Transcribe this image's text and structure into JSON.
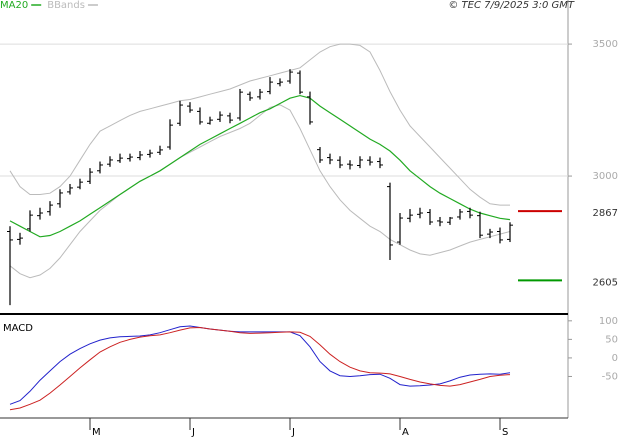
{
  "chart_data": [
    {
      "type": "ohlc",
      "attribution": "© TEC 7/9/2025 3:0 GMT",
      "categories": [
        null,
        null,
        null,
        null,
        null,
        null,
        null,
        null,
        "M",
        null,
        null,
        null,
        null,
        null,
        null,
        null,
        null,
        null,
        "J",
        null,
        null,
        null,
        null,
        null,
        null,
        null,
        null,
        null,
        "J",
        null,
        null,
        null,
        null,
        null,
        null,
        null,
        null,
        null,
        null,
        "A",
        null,
        null,
        null,
        null,
        null,
        null,
        null,
        null,
        null,
        "S",
        null
      ],
      "open": [
        2790,
        2760,
        2800,
        2850,
        2865,
        2895,
        2940,
        2958,
        2980,
        3020,
        3045,
        3058,
        3066,
        3070,
        3082,
        3090,
        3110,
        3200,
        3265,
        3245,
        3200,
        3215,
        3228,
        3220,
        3310,
        3300,
        3320,
        3350,
        3360,
        3390,
        3300,
        3100,
        3070,
        3060,
        3045,
        3040,
        3060,
        3055,
        2960,
        2750,
        2840,
        2855,
        2862,
        2830,
        2825,
        2845,
        2866,
        2850,
        2780,
        2790,
        2760
      ],
      "high": [
        2810,
        2785,
        2870,
        2880,
        2905,
        2950,
        2970,
        2990,
        3030,
        3055,
        3075,
        3085,
        3085,
        3095,
        3100,
        3115,
        3215,
        3285,
        3280,
        3260,
        3225,
        3245,
        3240,
        3330,
        3320,
        3330,
        3375,
        3370,
        3405,
        3400,
        3320,
        3110,
        3085,
        3075,
        3060,
        3075,
        3075,
        3070,
        2975,
        2860,
        2875,
        2880,
        2875,
        2845,
        2845,
        2875,
        2880,
        2865,
        2800,
        2805,
        2825
      ],
      "low": [
        2511,
        2740,
        2790,
        2835,
        2850,
        2880,
        2930,
        2950,
        2970,
        3010,
        3035,
        3050,
        3055,
        3060,
        3070,
        3080,
        3100,
        3190,
        3240,
        3195,
        3195,
        3205,
        3200,
        3210,
        3285,
        3290,
        3310,
        3340,
        3350,
        3310,
        3195,
        3050,
        3045,
        3030,
        3025,
        3030,
        3040,
        3030,
        2682,
        2740,
        2825,
        2840,
        2815,
        2810,
        2815,
        2835,
        2840,
        2765,
        2765,
        2745,
        2750
      ],
      "close": [
        2758,
        2765,
        2852,
        2860,
        2890,
        2936,
        2955,
        2977,
        3015,
        3042,
        3061,
        3068,
        3072,
        3080,
        3087,
        3099,
        3193,
        3269,
        3250,
        3205,
        3212,
        3231,
        3212,
        3318,
        3296,
        3318,
        3356,
        3356,
        3394,
        3318,
        3205,
        3061,
        3061,
        3042,
        3042,
        3061,
        3053,
        3042,
        2739,
        2841,
        2852,
        2860,
        2826,
        2826,
        2841,
        2864,
        2852,
        2776,
        2788,
        2758,
        2814
      ],
      "bar_color": "#000000",
      "series": [
        {
          "name": "MA20",
          "color": "#22aa22",
          "values": [
            2830,
            2810,
            2790,
            2770,
            2775,
            2790,
            2810,
            2830,
            2855,
            2880,
            2905,
            2930,
            2955,
            2980,
            3000,
            3020,
            3045,
            3070,
            3095,
            3120,
            3140,
            3160,
            3180,
            3200,
            3220,
            3240,
            3255,
            3275,
            3295,
            3305,
            3295,
            3265,
            3240,
            3215,
            3190,
            3165,
            3140,
            3120,
            3095,
            3060,
            3020,
            2990,
            2960,
            2935,
            2915,
            2895,
            2875,
            2860,
            2850,
            2840,
            2835
          ]
        },
        {
          "name": "BBands",
          "color": "#bbbbbb",
          "upper": [
            3020,
            2960,
            2930,
            2930,
            2935,
            2960,
            3000,
            3060,
            3120,
            3170,
            3190,
            3210,
            3230,
            3245,
            3255,
            3265,
            3275,
            3285,
            3290,
            3300,
            3310,
            3320,
            3330,
            3345,
            3360,
            3370,
            3380,
            3390,
            3400,
            3410,
            3440,
            3470,
            3490,
            3500,
            3500,
            3495,
            3470,
            3400,
            3320,
            3250,
            3190,
            3150,
            3110,
            3070,
            3030,
            2990,
            2950,
            2920,
            2895,
            2890,
            2890
          ],
          "lower": [
            2660,
            2630,
            2615,
            2625,
            2650,
            2690,
            2740,
            2790,
            2830,
            2870,
            2900,
            2930,
            2955,
            2980,
            3000,
            3020,
            3045,
            3070,
            3090,
            3110,
            3130,
            3150,
            3165,
            3180,
            3200,
            3230,
            3260,
            3270,
            3250,
            3180,
            3100,
            3020,
            2960,
            2910,
            2870,
            2840,
            2810,
            2790,
            2760,
            2740,
            2720,
            2705,
            2700,
            2710,
            2720,
            2735,
            2750,
            2760,
            2770,
            2780,
            2790
          ]
        }
      ],
      "levels": [
        {
          "value": 2867,
          "color": "#cc0000"
        },
        {
          "value": 2605,
          "color": "#009900"
        }
      ],
      "ylim": [
        2485,
        3667
      ],
      "yticks": [
        3000,
        3500
      ],
      "grid": true
    },
    {
      "type": "macd",
      "title": "MACD",
      "series": [
        {
          "color": "#2222cc",
          "values": [
            -125,
            -115,
            -90,
            -60,
            -35,
            -10,
            10,
            25,
            38,
            48,
            54,
            57,
            58,
            59,
            62,
            68,
            76,
            84,
            86,
            82,
            78,
            75,
            72,
            70,
            70,
            70,
            70,
            70,
            70,
            60,
            30,
            -10,
            -35,
            -48,
            -50,
            -48,
            -45,
            -44,
            -55,
            -72,
            -76,
            -75,
            -73,
            -70,
            -62,
            -52,
            -46,
            -44,
            -43,
            -44,
            -40
          ]
        },
        {
          "color": "#cc2222",
          "values": [
            -140,
            -135,
            -125,
            -114,
            -95,
            -73,
            -50,
            -27,
            -5,
            16,
            30,
            42,
            50,
            56,
            60,
            62,
            68,
            75,
            81,
            82,
            78,
            75,
            72,
            68,
            66,
            67,
            68,
            69,
            70,
            69,
            58,
            35,
            10,
            -10,
            -25,
            -35,
            -40,
            -41,
            -43,
            -50,
            -58,
            -65,
            -70,
            -74,
            -76,
            -72,
            -65,
            -58,
            -50,
            -47,
            -45
          ]
        }
      ],
      "ylim": [
        -162,
        113
      ],
      "yticks": [
        -50,
        0,
        50,
        100
      ]
    }
  ]
}
